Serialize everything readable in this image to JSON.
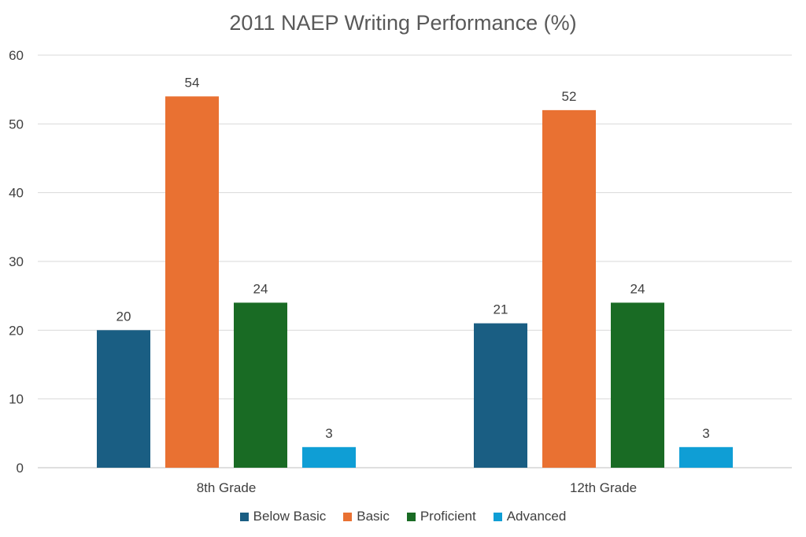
{
  "chart_data": {
    "type": "bar",
    "title": "2011 NAEP Writing Performance (%)",
    "categories": [
      "8th Grade",
      "12th Grade"
    ],
    "series": [
      {
        "name": "Below Basic",
        "color": "#1a5e83",
        "values": [
          20,
          21
        ]
      },
      {
        "name": "Basic",
        "color": "#e97132",
        "values": [
          54,
          52
        ]
      },
      {
        "name": "Proficient",
        "color": "#196b24",
        "values": [
          24,
          24
        ]
      },
      {
        "name": "Advanced",
        "color": "#0f9ed5",
        "values": [
          3,
          3
        ]
      }
    ],
    "ylim": [
      0,
      60
    ],
    "yticks": [
      0,
      10,
      20,
      30,
      40,
      50,
      60
    ],
    "grid": true,
    "legend": "bottom",
    "data_labels": true
  }
}
